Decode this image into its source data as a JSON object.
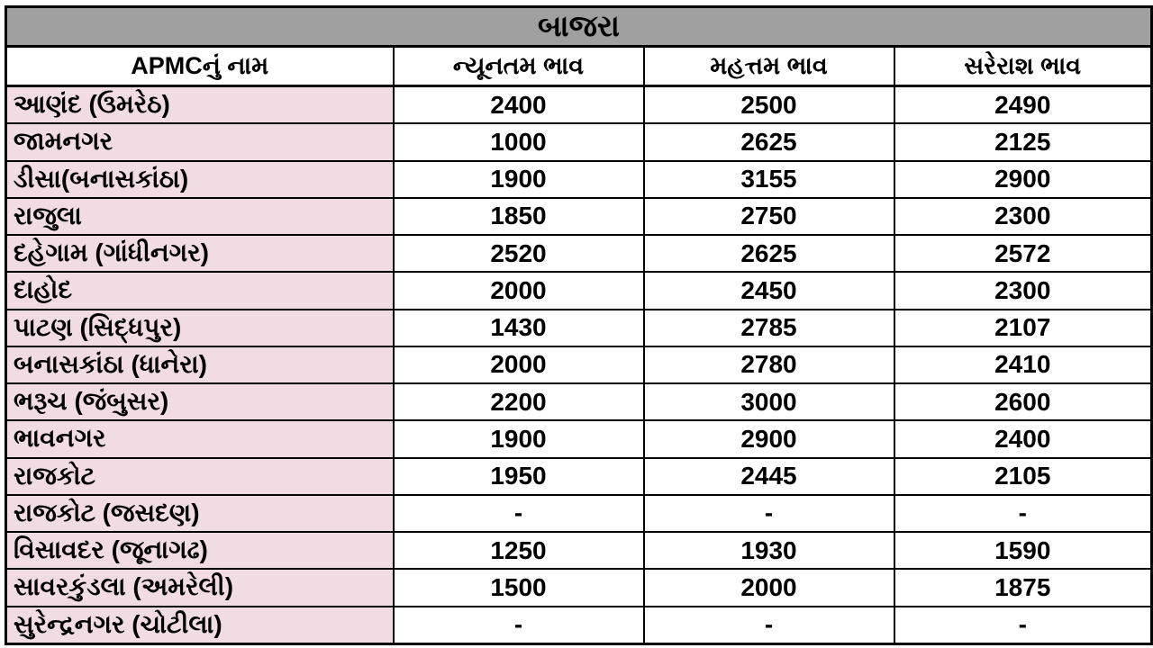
{
  "title": "બાજરા",
  "colors": {
    "title_bg": "#a0a0a0",
    "name_col_bg": "#f2dce4",
    "border": "#000000",
    "cell_bg": "#ffffff",
    "text": "#000000"
  },
  "chart_data": {
    "type": "table",
    "title": "બાજરા",
    "columns": [
      "APMCનું નામ",
      "ન્યૂનતમ ભાવ",
      "મહત્તમ ભાવ",
      "સરેરાશ ભાવ"
    ],
    "rows": [
      [
        "આણંદ (ઉમરેઠ)",
        "2400",
        "2500",
        "2490"
      ],
      [
        "જામનગર",
        "1000",
        "2625",
        "2125"
      ],
      [
        "ડીસા(બનાસકાંઠા)",
        "1900",
        "3155",
        "2900"
      ],
      [
        "રાજુલા",
        "1850",
        "2750",
        "2300"
      ],
      [
        "દહેગામ (ગાંધીનગર)",
        "2520",
        "2625",
        "2572"
      ],
      [
        "દાહોદ",
        "2000",
        "2450",
        "2300"
      ],
      [
        "પાટણ (સિદ્ધપુર)",
        "1430",
        "2785",
        "2107"
      ],
      [
        "બનાસકાંઠા (ધાનેરા)",
        "2000",
        "2780",
        "2410"
      ],
      [
        "ભરૂચ (જંબુસર)",
        "2200",
        "3000",
        "2600"
      ],
      [
        "ભાવનગર",
        "1900",
        "2900",
        "2400"
      ],
      [
        "રાજકોટ",
        "1950",
        "2445",
        "2105"
      ],
      [
        "રાજકોટ (જસદણ)",
        "-",
        "-",
        "-"
      ],
      [
        "વિસાવદર (જૂનાગઢ)",
        "1250",
        "1930",
        "1590"
      ],
      [
        "સાવરકુંડલા (અમરેલી)",
        "1500",
        "2000",
        "1875"
      ],
      [
        "સુરેન્દ્રનગર (ચોટીલા)",
        "-",
        "-",
        "-"
      ]
    ]
  }
}
